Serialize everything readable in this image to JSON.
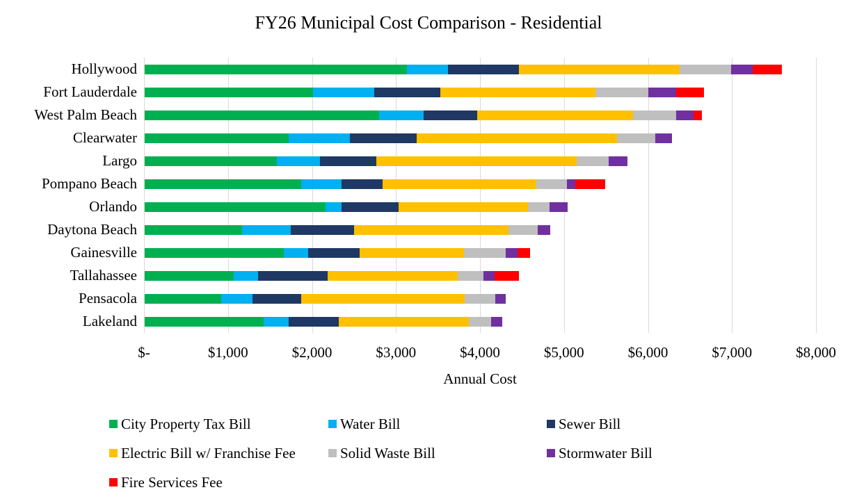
{
  "title": "FY26 Municipal Cost Comparison - Residential",
  "chart_data": {
    "type": "bar",
    "orientation": "horizontal",
    "stacked": true,
    "title": "FY26 Municipal Cost Comparison - Residential",
    "xlabel": "Annual Cost",
    "xlim": [
      0,
      8000
    ],
    "xticks": [
      0,
      1000,
      2000,
      3000,
      4000,
      5000,
      6000,
      7000,
      8000
    ],
    "xtick_labels": [
      "$-",
      "$1,000",
      "$2,000",
      "$3,000",
      "$4,000",
      "$5,000",
      "$6,000",
      "$7,000",
      "$8,000"
    ],
    "grid": true,
    "gridline_color": "#D9D9D9",
    "legend_position": "bottom-left",
    "categories": [
      "Hollywood",
      "Fort Lauderdale",
      "West Palm Beach",
      "Clearwater",
      "Largo",
      "Pompano Beach",
      "Orlando",
      "Daytona Beach",
      "Gainesville",
      "Tallahassee",
      "Pensacola",
      "Lakeland"
    ],
    "series": [
      {
        "name": "City Property Tax Bill",
        "color": "#00B050",
        "values": [
          3120,
          2000,
          2790,
          1715,
          1575,
          1860,
          2150,
          1160,
          1660,
          1060,
          915,
          1415
        ]
      },
      {
        "name": "Water Bill",
        "color": "#00B0F0",
        "values": [
          490,
          730,
          530,
          725,
          515,
          480,
          190,
          580,
          290,
          290,
          365,
          300
        ]
      },
      {
        "name": "Sewer Bill",
        "color": "#1F3864",
        "values": [
          845,
          790,
          640,
          800,
          670,
          490,
          680,
          750,
          610,
          825,
          580,
          595
        ]
      },
      {
        "name": "Electric Bill w/ Franchise Fee",
        "color": "#FFC000",
        "values": [
          1915,
          1850,
          1850,
          2385,
          2385,
          1830,
          1540,
          1840,
          1240,
          1555,
          1950,
          1550
        ]
      },
      {
        "name": "Solid Waste Bill",
        "color": "#BFBFBF",
        "values": [
          610,
          630,
          515,
          450,
          375,
          365,
          260,
          350,
          495,
          300,
          360,
          265
        ]
      },
      {
        "name": "Stormwater Bill",
        "color": "#7030A0",
        "values": [
          260,
          325,
          210,
          200,
          225,
          100,
          215,
          150,
          145,
          135,
          130,
          130
        ]
      },
      {
        "name": "Fire Services Fee",
        "color": "#FF0000",
        "values": [
          345,
          335,
          95,
          0,
          0,
          355,
          0,
          0,
          145,
          290,
          0,
          0
        ]
      }
    ]
  }
}
